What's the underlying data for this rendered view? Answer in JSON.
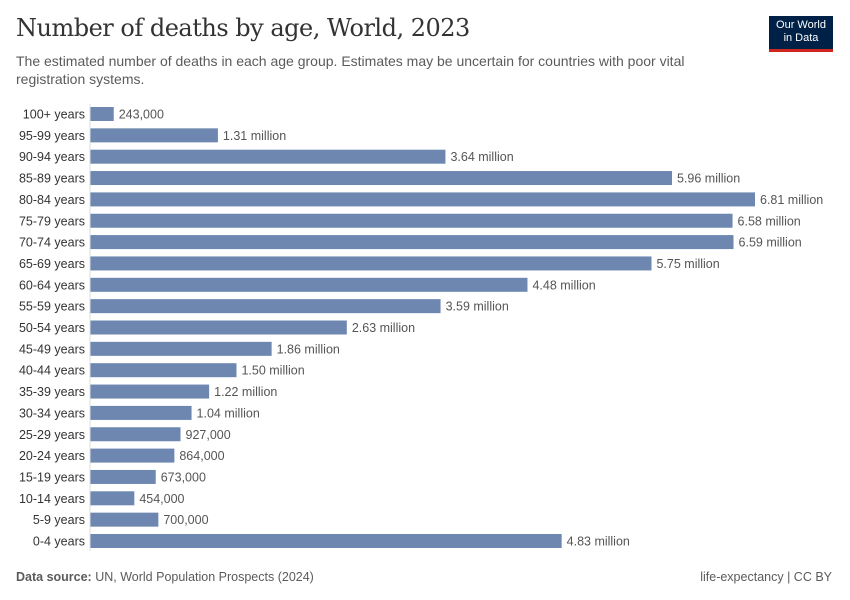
{
  "header": {
    "title": "Number of deaths by age, World, 2023",
    "subtitle": "The estimated number of deaths in each age group. Estimates may be uncertain for countries with poor vital registration systems.",
    "logo_text": "Our World in Data"
  },
  "footer": {
    "source_label": "Data source:",
    "source_text": "UN, World Population Prospects (2024)",
    "right_text": "life-expectancy | CC BY"
  },
  "colors": {
    "bar": "#6d87b1",
    "logo_bg": "#002147",
    "logo_accent": "#ce261e"
  },
  "chart_data": {
    "type": "bar",
    "orientation": "horizontal",
    "title": "Number of deaths by age, World, 2023",
    "categories": [
      "100+ years",
      "95-99 years",
      "90-94 years",
      "85-89 years",
      "80-84 years",
      "75-79 years",
      "70-74 years",
      "65-69 years",
      "60-64 years",
      "55-59 years",
      "50-54 years",
      "45-49 years",
      "40-44 years",
      "35-39 years",
      "30-34 years",
      "25-29 years",
      "20-24 years",
      "15-19 years",
      "10-14 years",
      "5-9 years",
      "0-4 years"
    ],
    "values": [
      243000,
      1310000,
      3640000,
      5960000,
      6810000,
      6580000,
      6590000,
      5750000,
      4480000,
      3590000,
      2630000,
      1860000,
      1500000,
      1220000,
      1040000,
      927000,
      864000,
      673000,
      454000,
      700000,
      4830000
    ],
    "labels": [
      "243,000",
      "1.31 million",
      "3.64 million",
      "5.96 million",
      "6.81 million",
      "6.58 million",
      "6.59 million",
      "5.75 million",
      "4.48 million",
      "3.59 million",
      "2.63 million",
      "1.86 million",
      "1.50 million",
      "1.22 million",
      "1.04 million",
      "927,000",
      "864,000",
      "673,000",
      "454,000",
      "700,000",
      "4.83 million"
    ],
    "grid": false
  }
}
